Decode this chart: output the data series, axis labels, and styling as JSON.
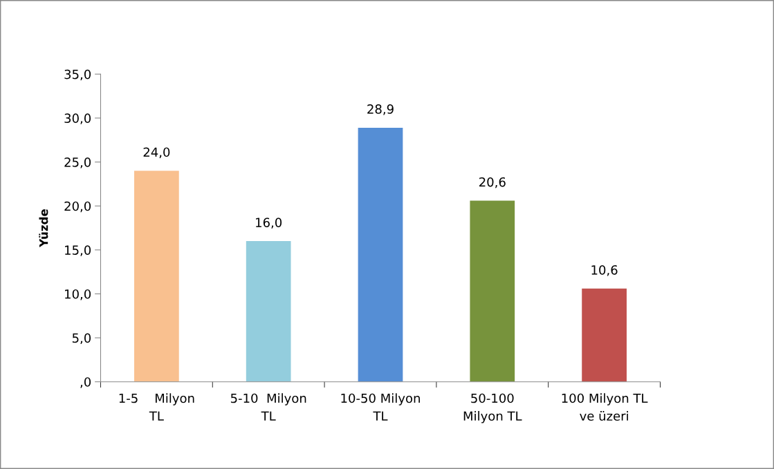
{
  "chart_data": {
    "type": "bar",
    "ylabel": "Yüzde",
    "categories": [
      "1-5    Milyon\nTL",
      "5-10  Milyon\nTL",
      "10-50 Milyon\nTL",
      "50-100\nMilyon TL",
      "100 Milyon TL\nve üzeri"
    ],
    "values": [
      24.0,
      16.0,
      28.9,
      20.6,
      10.6
    ],
    "value_labels": [
      "24,0",
      "16,0",
      "28,9",
      "20,6",
      "10,6"
    ],
    "colors": [
      "#f9c08f",
      "#93cddd",
      "#558ed5",
      "#77933c",
      "#c0504d"
    ],
    "ylim": [
      0,
      35
    ],
    "yticks": [
      {
        "value": 0,
        "label": ",0"
      },
      {
        "value": 5,
        "label": "5,0"
      },
      {
        "value": 10,
        "label": "10,0"
      },
      {
        "value": 15,
        "label": "15,0"
      },
      {
        "value": 20,
        "label": "20,0"
      },
      {
        "value": 25,
        "label": "25,0"
      },
      {
        "value": 30,
        "label": "30,0"
      },
      {
        "value": 35,
        "label": "35,0"
      }
    ],
    "grid": false,
    "legend": false
  }
}
